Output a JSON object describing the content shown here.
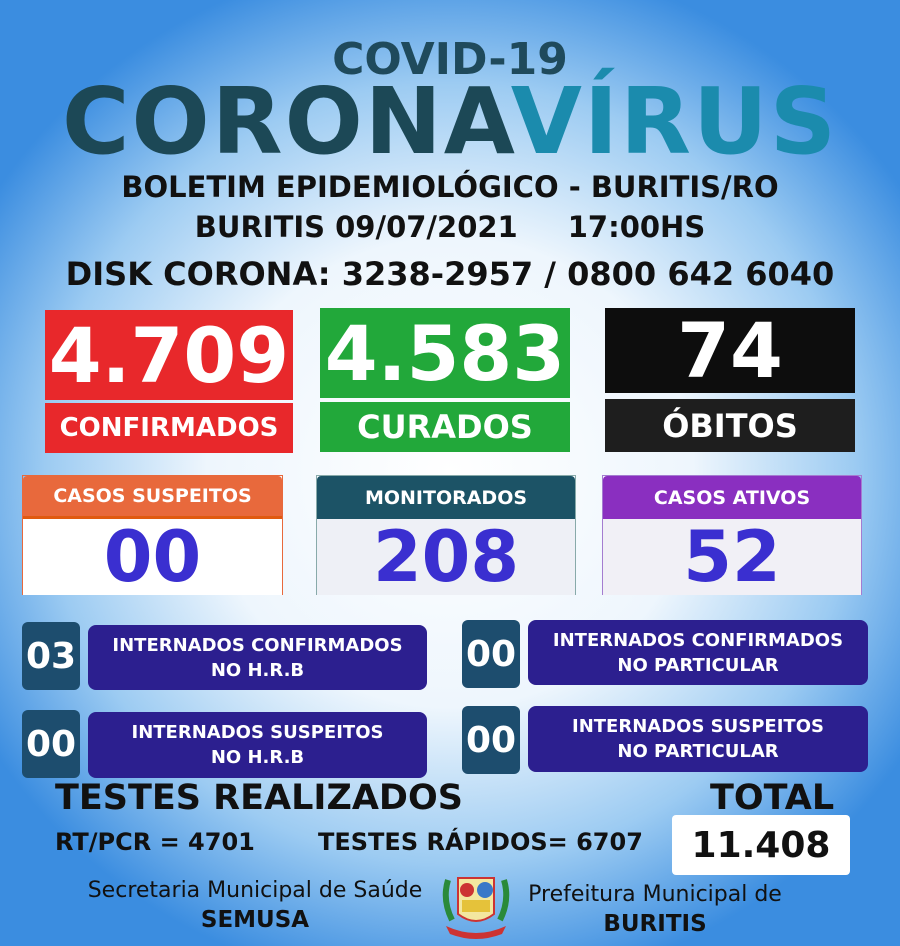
{
  "header": {
    "covid": "COVID-19",
    "corona": "CORONA",
    "virus": "VÍRUS",
    "boletim": "BOLETIM EPIDEMIOLÓGICO - BURITIS/RO",
    "date": "BURITIS 09/07/2021",
    "time": "17:00HS",
    "disk": "DISK CORONA: 3238-2957 / 0800 642 6040"
  },
  "main_stats": [
    {
      "value": "4.709",
      "label": "CONFIRMADOS",
      "color": "#e8282b"
    },
    {
      "value": "4.583",
      "label": "CURADOS",
      "color": "#22a83a"
    },
    {
      "value": "74",
      "label": "ÓBITOS",
      "color": "#0d0d0d"
    }
  ],
  "secondary_stats": [
    {
      "label": "CASOS SUSPEITOS",
      "value": "00",
      "color": "#e8693c"
    },
    {
      "label": "MONITORADOS",
      "value": "208",
      "color": "#1c5366"
    },
    {
      "label": "CASOS ATIVOS",
      "value": "52",
      "color": "#8a2fc0"
    }
  ],
  "internados": [
    {
      "value": "03",
      "line1": "INTERNADOS CONFIRMADOS",
      "line2": "NO H.R.B"
    },
    {
      "value": "00",
      "line1": "INTERNADOS CONFIRMADOS",
      "line2": "NO PARTICULAR"
    },
    {
      "value": "00",
      "line1": "INTERNADOS SUSPEITOS",
      "line2": "NO H.R.B"
    },
    {
      "value": "00",
      "line1": "INTERNADOS SUSPEITOS",
      "line2": "NO PARTICULAR"
    }
  ],
  "tests": {
    "title": "TESTES REALIZADOS",
    "rtpcr": "RT/PCR = 4701",
    "rapidos": "TESTES RÁPIDOS= 6707",
    "total_label": "TOTAL",
    "total_value": "11.408"
  },
  "footer": {
    "sec_line1": "Secretaria Municipal de Saúde",
    "sec_line2": "SEMUSA",
    "pref_line1": "Prefeitura Municipal de",
    "pref_line2": "BURITIS",
    "logo_text": "BURITIS"
  }
}
